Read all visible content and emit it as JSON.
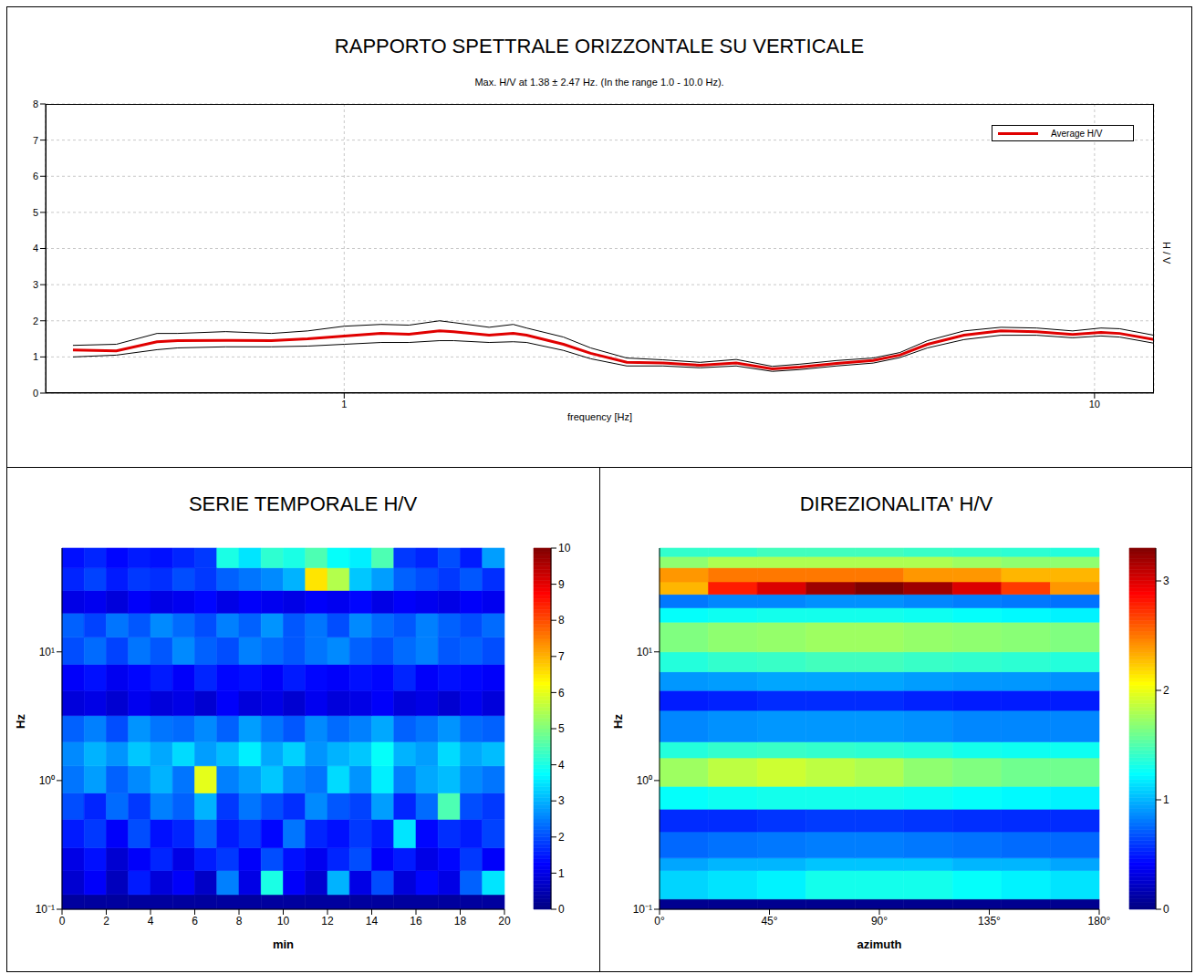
{
  "chart_data": [
    {
      "type": "line",
      "title": "RAPPORTO SPETTRALE ORIZZONTALE SU VERTICALE",
      "subtitle": "Max. H/V at 1.38 ± 2.47 Hz. (In the range 1.0 - 10.0 Hz).",
      "x_label": "frequency [Hz]",
      "y_label": "H / V",
      "log": "x",
      "grid": true,
      "legend": "upper right",
      "x": [
        0.435,
        0.497,
        0.563,
        0.6,
        0.695,
        0.8,
        0.894,
        1,
        1.12,
        1.22,
        1.34,
        1.4,
        1.56,
        1.68,
        1.75,
        1.96,
        2.13,
        2.38,
        2.66,
        2.98,
        3.33,
        3.72,
        4.05,
        4.53,
        5.07,
        5.5,
        5.99,
        6.7,
        7.5,
        8.37,
        9.35,
        10.2,
        10.8,
        12
      ],
      "series": [
        {
          "name": "Average H/V",
          "color": "#e00000",
          "values": [
            1.19,
            1.17,
            1.42,
            1.45,
            1.46,
            1.45,
            1.5,
            1.58,
            1.65,
            1.63,
            1.72,
            1.7,
            1.6,
            1.65,
            1.6,
            1.35,
            1.1,
            0.85,
            0.83,
            0.77,
            0.83,
            0.67,
            0.72,
            0.82,
            0.9,
            1.05,
            1.35,
            1.6,
            1.72,
            1.7,
            1.62,
            1.68,
            1.65,
            1.48
          ]
        },
        {
          "color": "#000000",
          "values": [
            1.32,
            1.35,
            1.65,
            1.65,
            1.7,
            1.65,
            1.72,
            1.85,
            1.9,
            1.88,
            2.0,
            1.95,
            1.82,
            1.9,
            1.8,
            1.55,
            1.25,
            0.97,
            0.92,
            0.85,
            0.93,
            0.74,
            0.8,
            0.9,
            0.97,
            1.12,
            1.45,
            1.72,
            1.82,
            1.8,
            1.72,
            1.8,
            1.78,
            1.6
          ]
        },
        {
          "color": "#000000",
          "values": [
            1.0,
            1.05,
            1.2,
            1.25,
            1.28,
            1.28,
            1.3,
            1.35,
            1.4,
            1.4,
            1.45,
            1.45,
            1.4,
            1.42,
            1.4,
            1.18,
            0.95,
            0.75,
            0.75,
            0.7,
            0.75,
            0.6,
            0.65,
            0.75,
            0.83,
            0.98,
            1.25,
            1.48,
            1.6,
            1.6,
            1.53,
            1.58,
            1.55,
            1.38
          ]
        }
      ],
      "xlim": [
        0.4,
        12
      ],
      "ylim": [
        0,
        8
      ],
      "xticks": [
        1,
        10
      ],
      "yticks": [
        0,
        1,
        2,
        3,
        4,
        5,
        6,
        7,
        8
      ]
    },
    {
      "type": "heatmap",
      "title": "SERIE TEMPORALE H/V",
      "x_label": "min",
      "y_label": "Hz",
      "log": "y",
      "x_edges": [
        0,
        1,
        2,
        3,
        4,
        5,
        6,
        7,
        8,
        9,
        10,
        11,
        12,
        13,
        14,
        15,
        16,
        17,
        18,
        19,
        20
      ],
      "y_edges": [
        0.1,
        0.13,
        0.2,
        0.3,
        0.5,
        0.8,
        1.3,
        2,
        3.2,
        5,
        8,
        13,
        20,
        30,
        45,
        64
      ],
      "z": [
        [
          0.3,
          0.3,
          0.3,
          0.3,
          0.3,
          0.3,
          0.3,
          0.3,
          0.3,
          0.3,
          0.3,
          0.3,
          0.3,
          0.3,
          0.3,
          0.3,
          0.3,
          0.3,
          0.3,
          0.3
        ],
        [
          0.8,
          1.2,
          0.6,
          1.5,
          0.9,
          1.2,
          0.7,
          2.5,
          1.0,
          4.0,
          1.2,
          0.8,
          3.0,
          1.0,
          2.0,
          0.9,
          1.3,
          1.0,
          2.2,
          3.5
        ],
        [
          1.0,
          1.4,
          0.8,
          1.2,
          1.6,
          1.0,
          1.5,
          1.8,
          1.2,
          2.0,
          1.4,
          1.1,
          1.6,
          2.0,
          1.2,
          1.5,
          1.0,
          1.3,
          1.8,
          1.2
        ],
        [
          1.5,
          1.8,
          1.2,
          2.0,
          1.4,
          1.6,
          2.2,
          1.5,
          1.8,
          1.3,
          2.4,
          1.6,
          1.4,
          1.8,
          1.5,
          3.5,
          1.3,
          1.7,
          1.5,
          1.9
        ],
        [
          2.0,
          1.6,
          2.3,
          1.8,
          2.5,
          2.2,
          3.0,
          1.8,
          2.4,
          2.0,
          1.7,
          2.6,
          2.1,
          1.9,
          2.8,
          1.6,
          2.3,
          4.5,
          2.0,
          1.8
        ],
        [
          2.4,
          2.8,
          2.2,
          2.6,
          3.0,
          2.4,
          6.0,
          2.5,
          2.8,
          3.2,
          2.6,
          2.4,
          3.4,
          2.7,
          3.6,
          2.5,
          2.9,
          3.1,
          2.6,
          2.4
        ],
        [
          2.6,
          3.0,
          2.7,
          3.2,
          2.9,
          3.4,
          2.8,
          3.1,
          3.6,
          2.9,
          3.3,
          2.7,
          3.0,
          3.2,
          3.8,
          3.0,
          2.8,
          3.4,
          2.9,
          3.1
        ],
        [
          2.2,
          2.5,
          2.0,
          2.7,
          2.4,
          2.3,
          2.6,
          2.2,
          2.8,
          2.4,
          2.1,
          2.6,
          2.3,
          2.5,
          2.9,
          2.2,
          2.4,
          2.7,
          2.3,
          2.2
        ],
        [
          0.9,
          1.0,
          0.8,
          1.1,
          0.9,
          1.0,
          0.8,
          1.2,
          0.9,
          1.0,
          0.8,
          1.1,
          0.9,
          1.0,
          1.2,
          0.9,
          1.0,
          0.8,
          1.1,
          0.9
        ],
        [
          1.2,
          1.4,
          1.1,
          1.3,
          1.5,
          1.2,
          1.6,
          1.3,
          1.4,
          1.2,
          1.5,
          1.3,
          1.2,
          1.4,
          1.3,
          1.6,
          1.2,
          1.4,
          1.3,
          1.2
        ],
        [
          2.0,
          2.3,
          1.9,
          2.4,
          2.1,
          2.6,
          2.2,
          2.0,
          2.5,
          2.3,
          2.1,
          2.4,
          2.6,
          2.2,
          2.0,
          2.3,
          2.5,
          2.1,
          2.2,
          2.0
        ],
        [
          2.2,
          1.9,
          2.4,
          2.1,
          2.6,
          2.3,
          2.0,
          2.5,
          2.2,
          2.7,
          2.1,
          2.4,
          2.0,
          2.6,
          2.3,
          2.1,
          2.5,
          2.2,
          2.0,
          2.3
        ],
        [
          1.0,
          1.1,
          0.9,
          1.2,
          1.0,
          1.1,
          1.3,
          1.0,
          1.2,
          1.1,
          1.0,
          1.2,
          1.1,
          1.3,
          1.0,
          1.2,
          1.1,
          1.0,
          1.2,
          1.1
        ],
        [
          1.6,
          1.9,
          1.5,
          1.8,
          1.7,
          2.0,
          1.8,
          2.2,
          2.4,
          2.6,
          3.0,
          6.5,
          5.5,
          3.2,
          2.8,
          2.2,
          2.0,
          1.8,
          2.1,
          1.7
        ],
        [
          1.4,
          1.6,
          1.3,
          1.5,
          1.4,
          1.6,
          1.8,
          4.0,
          3.5,
          4.2,
          4.0,
          4.5,
          3.8,
          3.6,
          4.5,
          1.8,
          1.6,
          2.0,
          1.5,
          2.8
        ]
      ],
      "xlim": [
        0,
        20
      ],
      "ylim": [
        0.1,
        64
      ],
      "xticks": [
        0,
        2,
        4,
        6,
        8,
        10,
        12,
        14,
        16,
        18,
        20
      ],
      "yticks": [
        {
          "value": 0.1,
          "label": "10⁻¹"
        },
        {
          "value": 1,
          "label": "10⁰"
        },
        {
          "value": 10,
          "label": "10¹"
        }
      ],
      "colorbar": {
        "lim": [
          0,
          10
        ],
        "ticks": [
          0,
          1,
          2,
          3,
          4,
          5,
          6,
          7,
          8,
          9,
          10
        ]
      }
    },
    {
      "type": "heatmap",
      "title": "DIREZIONALITA' H/V",
      "x_label": "azimuth",
      "y_label": "Hz",
      "log": "y",
      "x_edges": [
        0,
        20,
        40,
        60,
        80,
        100,
        120,
        140,
        160,
        180
      ],
      "y_edges": [
        0.1,
        0.12,
        0.2,
        0.25,
        0.4,
        0.6,
        0.9,
        1.5,
        2,
        3.5,
        5,
        7,
        10,
        17,
        22,
        28,
        35,
        45,
        55,
        64
      ],
      "z": [
        [
          0.05,
          0.05,
          0.05,
          0.05,
          0.05,
          0.05,
          0.05,
          0.05,
          0.05
        ],
        [
          1.1,
          1.15,
          1.2,
          1.3,
          1.3,
          1.3,
          1.25,
          1.2,
          1.15
        ],
        [
          0.95,
          1.0,
          1.0,
          1.05,
          1.05,
          1.05,
          1.0,
          1.0,
          0.95
        ],
        [
          0.75,
          0.78,
          0.8,
          0.82,
          0.82,
          0.8,
          0.78,
          0.76,
          0.75
        ],
        [
          0.55,
          0.55,
          0.58,
          0.6,
          0.6,
          0.58,
          0.56,
          0.55,
          0.55
        ],
        [
          1.25,
          1.28,
          1.3,
          1.3,
          1.3,
          1.28,
          1.25,
          1.22,
          1.2
        ],
        [
          1.75,
          1.85,
          1.9,
          1.85,
          1.8,
          1.7,
          1.65,
          1.6,
          1.6
        ],
        [
          1.35,
          1.4,
          1.42,
          1.4,
          1.38,
          1.35,
          1.3,
          1.28,
          1.28
        ],
        [
          0.85,
          0.88,
          0.9,
          0.9,
          0.9,
          0.88,
          0.85,
          0.85,
          0.85
        ],
        [
          0.5,
          0.52,
          0.55,
          0.55,
          0.55,
          0.52,
          0.5,
          0.5,
          0.5
        ],
        [
          0.9,
          0.92,
          0.95,
          0.95,
          0.95,
          0.92,
          0.9,
          0.9,
          0.88
        ],
        [
          1.35,
          1.4,
          1.42,
          1.45,
          1.45,
          1.42,
          1.4,
          1.38,
          1.35
        ],
        [
          1.65,
          1.7,
          1.72,
          1.75,
          1.75,
          1.72,
          1.7,
          1.68,
          1.65
        ],
        [
          1.25,
          1.28,
          1.3,
          1.3,
          1.3,
          1.28,
          1.25,
          1.22,
          1.2
        ],
        [
          0.8,
          0.85,
          0.85,
          0.88,
          0.88,
          0.85,
          0.82,
          0.8,
          0.78
        ],
        [
          2.3,
          2.8,
          3.0,
          3.2,
          3.3,
          3.2,
          3.0,
          2.7,
          2.4
        ],
        [
          2.4,
          2.5,
          2.5,
          2.5,
          2.5,
          2.4,
          2.4,
          2.3,
          2.3
        ],
        [
          1.7,
          1.8,
          1.8,
          1.8,
          1.8,
          1.8,
          1.75,
          1.7,
          1.7
        ],
        [
          1.4,
          1.4,
          1.45,
          1.45,
          1.45,
          1.42,
          1.4,
          1.38,
          1.35
        ]
      ],
      "xlim": [
        0,
        180
      ],
      "ylim": [
        0.1,
        64
      ],
      "xticks": [
        {
          "value": 0,
          "label": "0°"
        },
        {
          "value": 45,
          "label": "45°"
        },
        {
          "value": 90,
          "label": "90°"
        },
        {
          "value": 135,
          "label": "135°"
        },
        {
          "value": 180,
          "label": "180°"
        }
      ],
      "yticks": [
        {
          "value": 0.1,
          "label": "10⁻¹"
        },
        {
          "value": 1,
          "label": "10⁰"
        },
        {
          "value": 10,
          "label": "10¹"
        }
      ],
      "colorbar": {
        "lim": [
          0,
          3.3
        ],
        "ticks": [
          0,
          1,
          2,
          3
        ]
      }
    }
  ]
}
